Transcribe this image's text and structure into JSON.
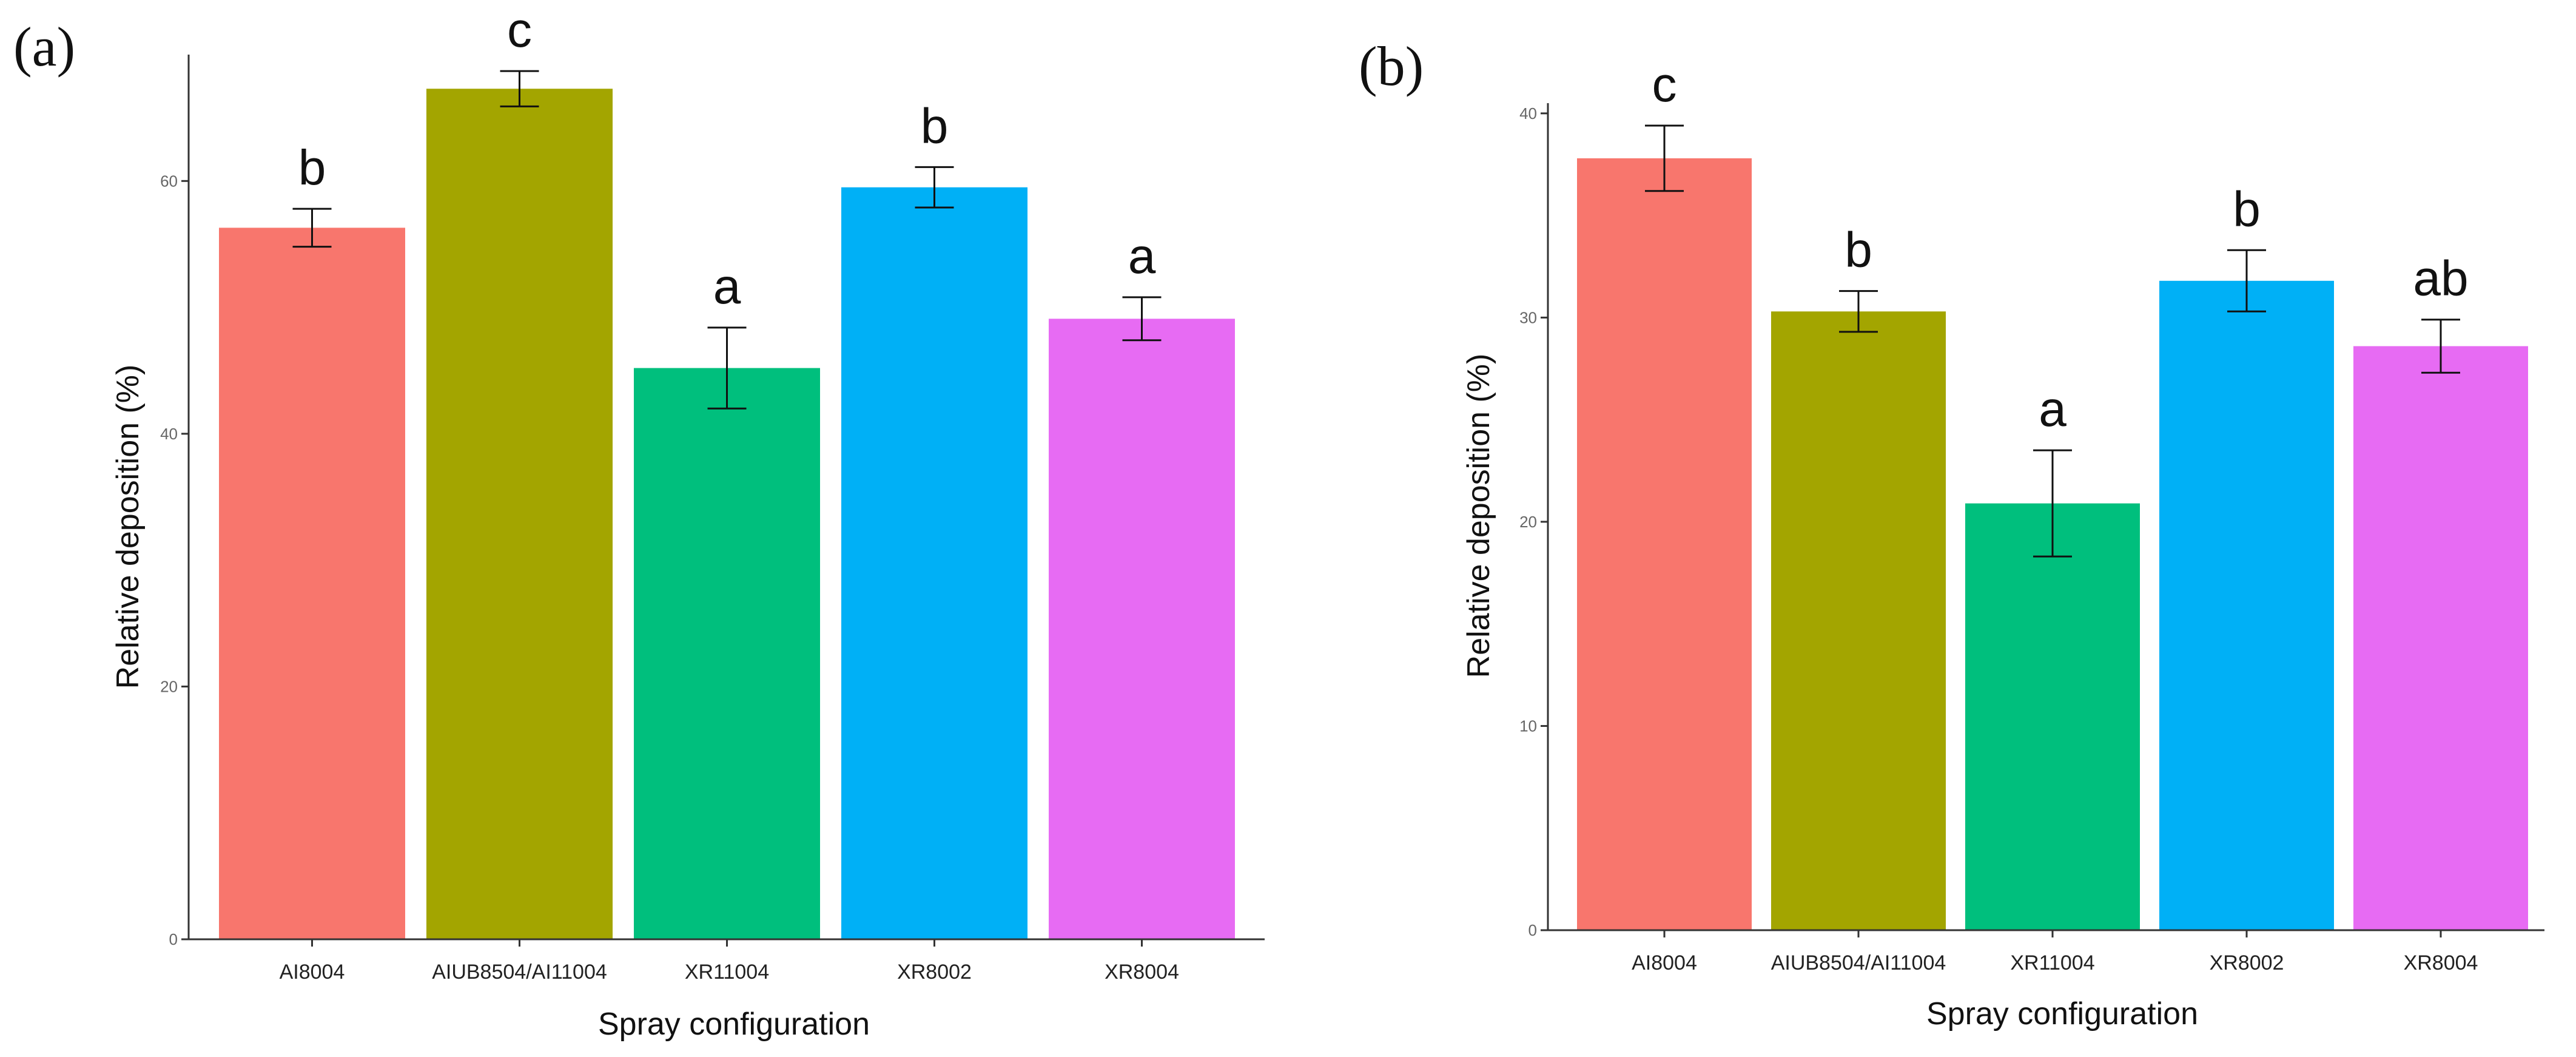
{
  "chart_data": [
    {
      "panel_label": "(a)",
      "type": "bar",
      "xlabel": "Spray configuration",
      "ylabel": "Relative deposition (%)",
      "ylim": [
        0,
        70
      ],
      "yticks": [
        0,
        20,
        40,
        60
      ],
      "categories": [
        "AI8004",
        "AIUB8504/AI11004",
        "XR11004",
        "XR8002",
        "XR8004"
      ],
      "values": [
        56.3,
        67.3,
        45.2,
        59.5,
        49.1
      ],
      "errors": [
        1.5,
        1.4,
        3.2,
        1.6,
        1.7
      ],
      "significance": [
        "b",
        "c",
        "a",
        "b",
        "a"
      ],
      "colors": [
        "#F8766D",
        "#A3A500",
        "#00BF7D",
        "#00B0F6",
        "#E76BF3"
      ],
      "grid": false
    },
    {
      "panel_label": "(b)",
      "type": "bar",
      "xlabel": "Spray configuration",
      "ylabel": "Relative deposition (%)",
      "ylim": [
        0,
        40.5
      ],
      "yticks": [
        0,
        10,
        20,
        30,
        40
      ],
      "categories": [
        "AI8004",
        "AIUB8504/AI11004",
        "XR11004",
        "XR8002",
        "XR8004"
      ],
      "values": [
        37.8,
        30.3,
        20.9,
        31.8,
        28.6
      ],
      "errors": [
        1.6,
        1.0,
        2.6,
        1.5,
        1.3
      ],
      "significance": [
        "c",
        "b",
        "a",
        "b",
        "ab"
      ],
      "colors": [
        "#F8766D",
        "#A3A500",
        "#00BF7D",
        "#00B0F6",
        "#E76BF3"
      ],
      "grid": false
    }
  ]
}
